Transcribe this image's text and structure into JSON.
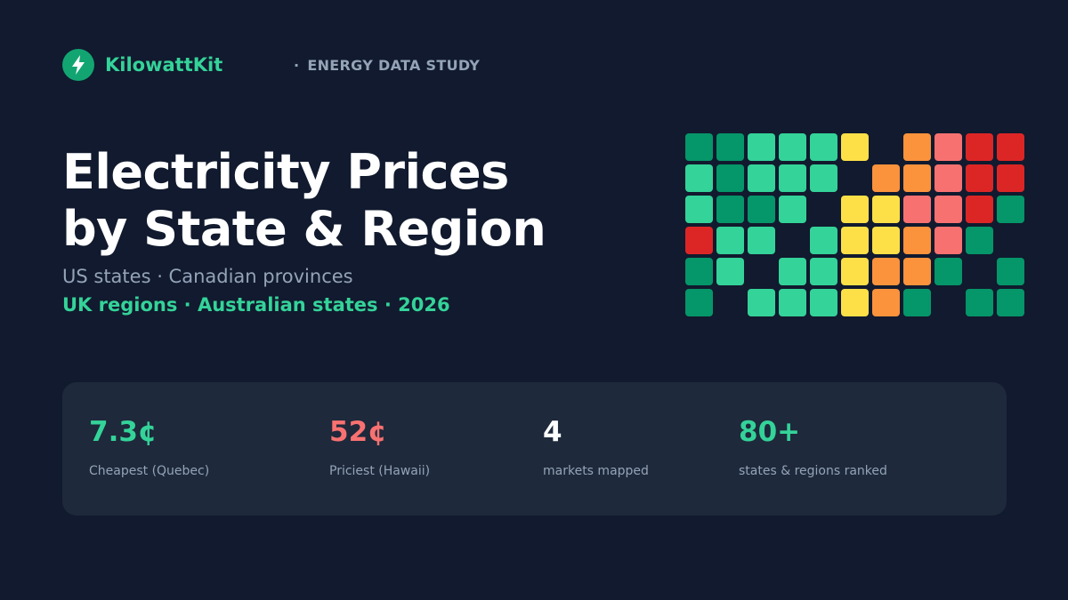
{
  "brand": {
    "name": "KilowattKit",
    "icon": "lightning-bolt-icon",
    "color": "#34d399"
  },
  "tag": {
    "bullet": "·",
    "label": "ENERGY DATA STUDY"
  },
  "hero": {
    "title_line1": "Electricity Prices",
    "title_line2": "by State & Region",
    "subtitle_line1": "US states · Canadian provinces",
    "subtitle_line2": "UK regions · Australian states · 2026"
  },
  "palette": {
    "dark_green": "#059669",
    "green": "#34d399",
    "yellow": "#fde047",
    "orange": "#fb923c",
    "pink": "#f87171",
    "red": "#dc2626"
  },
  "grid": [
    [
      "dark_green",
      "dark_green",
      "green",
      "green",
      "green",
      "yellow",
      null,
      "orange",
      "pink",
      "red",
      "red"
    ],
    [
      "green",
      "dark_green",
      "green",
      "green",
      "green",
      null,
      "orange",
      "orange",
      "pink",
      "red",
      "red"
    ],
    [
      "green",
      "dark_green",
      "dark_green",
      "green",
      null,
      "yellow",
      "yellow",
      "pink",
      "pink",
      "red",
      "dark_green"
    ],
    [
      "red",
      "green",
      "green",
      null,
      "green",
      "yellow",
      "yellow",
      "orange",
      "pink",
      "dark_green",
      null
    ],
    [
      "dark_green",
      "green",
      null,
      "green",
      "green",
      "yellow",
      "orange",
      "orange",
      "dark_green",
      null,
      "dark_green"
    ],
    [
      "dark_green",
      null,
      "green",
      "green",
      "green",
      "yellow",
      "orange",
      "dark_green",
      null,
      "dark_green",
      "dark_green"
    ]
  ],
  "stats": [
    {
      "value": "7.3¢",
      "label": "Cheapest (Quebec)",
      "color": "#34d399"
    },
    {
      "value": "52¢",
      "label": "Priciest (Hawaii)",
      "color": "#f87171"
    },
    {
      "value": "4",
      "label": "markets mapped",
      "color": "#ffffff"
    },
    {
      "value": "80+",
      "label": "states & regions ranked",
      "color": "#34d399"
    }
  ]
}
